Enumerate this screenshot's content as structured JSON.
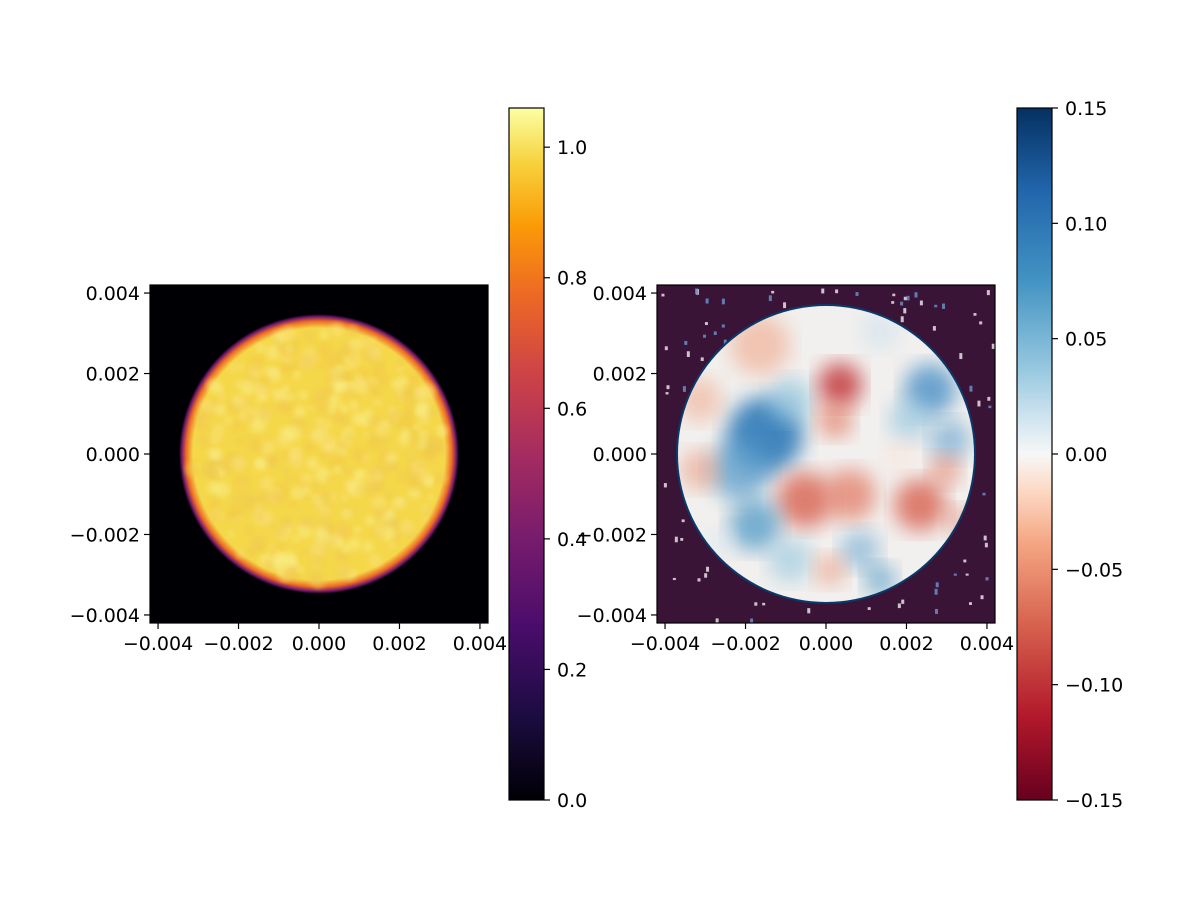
{
  "chart_data": [
    {
      "type": "heatmap",
      "title": "",
      "xlabel": "",
      "ylabel": "",
      "xlim": [
        -0.0042,
        0.0042
      ],
      "ylim": [
        -0.0042,
        0.0042
      ],
      "x_ticks": [
        "−0.004",
        "−0.002",
        "0.000",
        "0.002",
        "0.004"
      ],
      "y_ticks": [
        "0.004",
        "0.002",
        "0.000",
        "−0.002",
        "−0.004"
      ],
      "colormap": "inferno",
      "colorbar": {
        "range": [
          0.0,
          1.06
        ],
        "ticks": [
          "0.0",
          "0.2",
          "0.4",
          "0.6",
          "0.8",
          "1.0"
        ]
      },
      "description_values": {
        "disk_radius": 0.0034,
        "inside_value_approx": 0.95,
        "outside_value": 0.0
      },
      "colors": {
        "background": "#000004",
        "disk": "#f5d74a",
        "speckle": "#f9ee8a"
      }
    },
    {
      "type": "heatmap",
      "title": "",
      "xlabel": "",
      "ylabel": "",
      "xlim": [
        -0.0042,
        0.0042
      ],
      "ylim": [
        -0.0042,
        0.0042
      ],
      "x_ticks": [
        "−0.004",
        "−0.002",
        "0.000",
        "0.002",
        "0.004"
      ],
      "y_ticks": [
        "0.004",
        "0.002",
        "0.000",
        "−0.002",
        "−0.004"
      ],
      "colormap": "RdBu",
      "colorbar": {
        "range": [
          -0.15,
          0.15
        ],
        "ticks": [
          "0.15",
          "0.10",
          "0.05",
          "0.00",
          "−0.05",
          "−0.10",
          "−0.15"
        ]
      },
      "description_values": {
        "disk_radius": 0.0037,
        "inside_value_range": [
          -0.1,
          0.1
        ],
        "outside_value_approx": -0.15
      },
      "colors": {
        "background": "#3a1436",
        "blue": "#2f7ab8",
        "red": "#d8604f"
      }
    }
  ]
}
